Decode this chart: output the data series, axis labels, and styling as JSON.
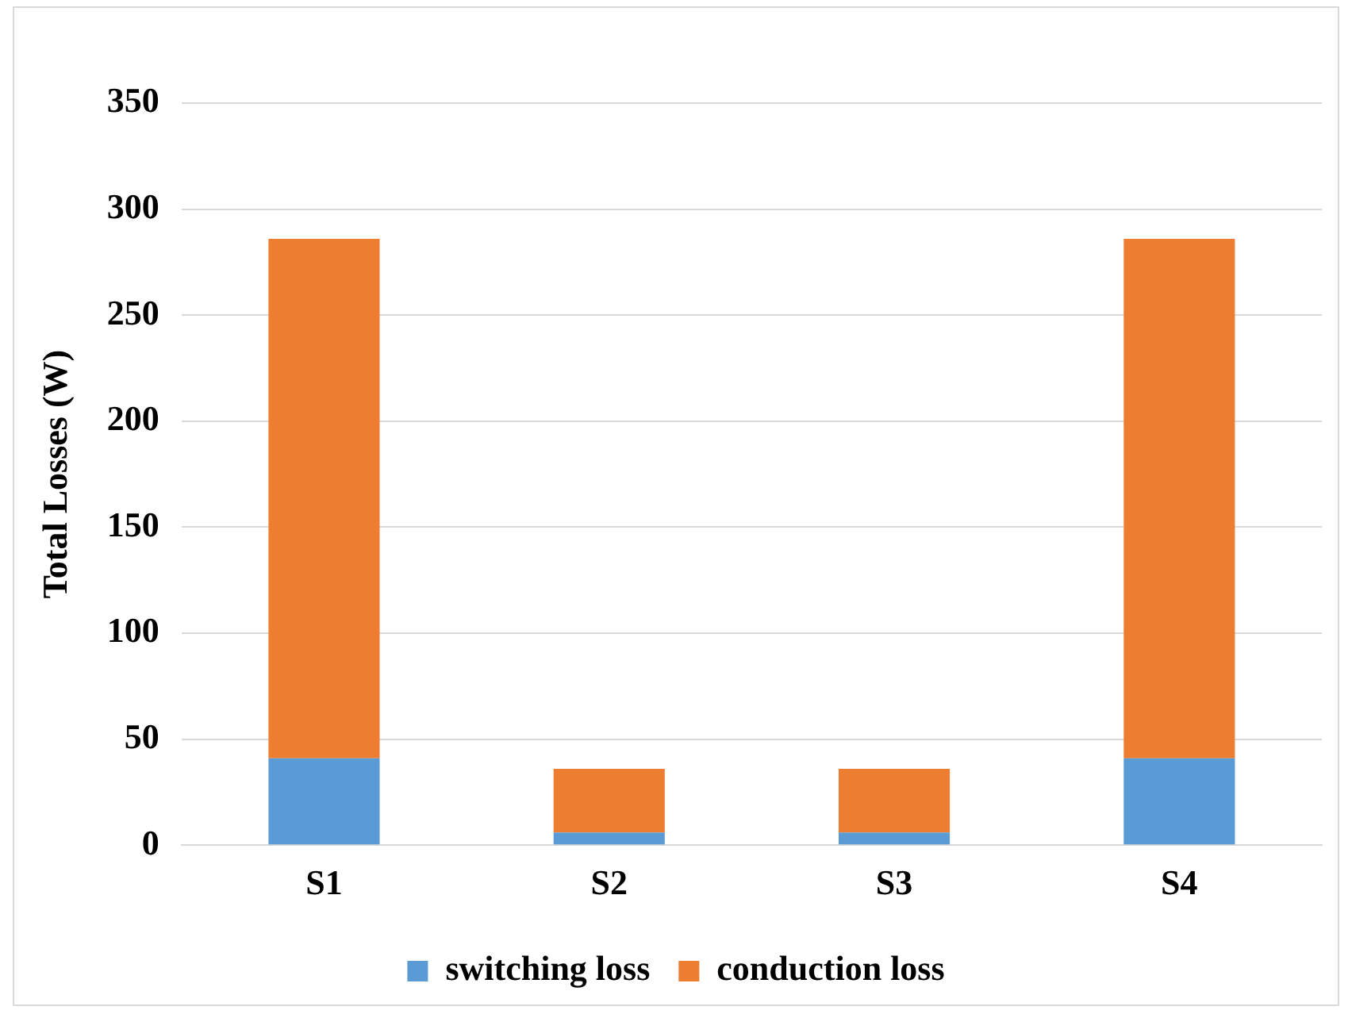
{
  "chart_data": {
    "type": "bar",
    "ylabel": "Total Losses (W)",
    "categories": [
      "S1",
      "S2",
      "S3",
      "S4"
    ],
    "stacked": true,
    "series": [
      {
        "name": "switching loss",
        "color": "#5b9bd5",
        "values": [
          41,
          6,
          6,
          41
        ]
      },
      {
        "name": "conduction loss",
        "color": "#ed7d31",
        "values": [
          245,
          30,
          30,
          245
        ]
      }
    ],
    "ylim": [
      0,
      350
    ],
    "yticks": [
      0,
      50,
      100,
      150,
      200,
      250,
      300,
      350
    ],
    "grid": "y",
    "legend": "bottom"
  }
}
